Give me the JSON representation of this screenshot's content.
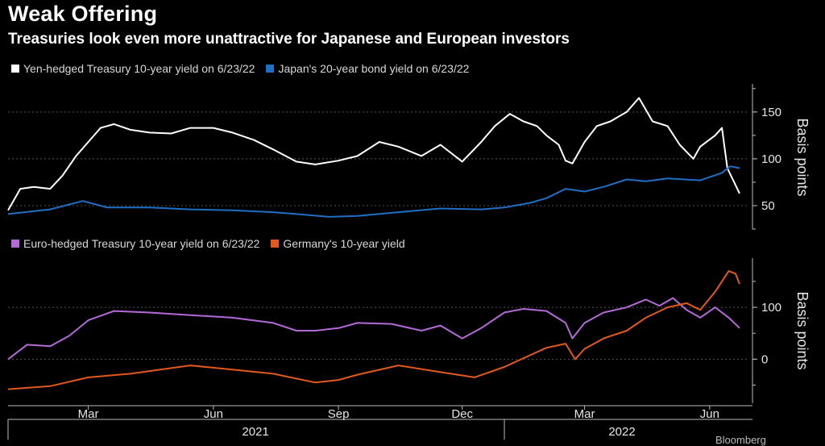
{
  "header": {
    "title": "Weak Offering",
    "subtitle": "Treasuries look even more unattractive for Japanese and European investors"
  },
  "footer": {
    "source_logo": "Bloomberg"
  },
  "colors": {
    "white": "#ffffff",
    "blue": "#1f6fc4",
    "purple": "#b36ad6",
    "orange": "#e2591c",
    "grid": "#555555",
    "axis": "#bbbbbb"
  },
  "chart_data": [
    {
      "type": "line",
      "legend": [
        "Yen-hedged Treasury 10-year yield on 6/23/22",
        "Japan's 20-year bond yield on 6/23/22"
      ],
      "ylabel": "Basis points",
      "yticks": [
        50,
        100,
        150
      ],
      "ylim": [
        25,
        180
      ],
      "x_date_range": [
        "2021-01-01",
        "2022-06-23"
      ],
      "grid": "horizontal dotted",
      "series": [
        {
          "name": "Yen-hedged Treasury 10-year yield on 6/23/22",
          "color": "#ffffff",
          "points": [
            [
              "2021-01-01",
              45
            ],
            [
              "2021-01-10",
              68
            ],
            [
              "2021-01-20",
              70
            ],
            [
              "2021-02-01",
              68
            ],
            [
              "2021-02-10",
              82
            ],
            [
              "2021-02-20",
              103
            ],
            [
              "2021-03-01",
              118
            ],
            [
              "2021-03-10",
              133
            ],
            [
              "2021-03-20",
              137
            ],
            [
              "2021-04-01",
              131
            ],
            [
              "2021-04-15",
              128
            ],
            [
              "2021-05-01",
              127
            ],
            [
              "2021-05-15",
              133
            ],
            [
              "2021-06-01",
              133
            ],
            [
              "2021-06-15",
              128
            ],
            [
              "2021-07-01",
              120
            ],
            [
              "2021-07-15",
              110
            ],
            [
              "2021-08-01",
              97
            ],
            [
              "2021-08-15",
              94
            ],
            [
              "2021-09-01",
              98
            ],
            [
              "2021-09-15",
              103
            ],
            [
              "2021-10-01",
              118
            ],
            [
              "2021-10-15",
              113
            ],
            [
              "2021-11-01",
              103
            ],
            [
              "2021-11-15",
              115
            ],
            [
              "2021-12-01",
              97
            ],
            [
              "2021-12-15",
              118
            ],
            [
              "2021-12-25",
              135
            ],
            [
              "2022-01-05",
              148
            ],
            [
              "2022-01-15",
              140
            ],
            [
              "2022-01-25",
              135
            ],
            [
              "2022-02-01",
              125
            ],
            [
              "2022-02-10",
              115
            ],
            [
              "2022-02-15",
              98
            ],
            [
              "2022-02-20",
              95
            ],
            [
              "2022-03-01",
              118
            ],
            [
              "2022-03-10",
              135
            ],
            [
              "2022-03-20",
              140
            ],
            [
              "2022-04-01",
              150
            ],
            [
              "2022-04-10",
              165
            ],
            [
              "2022-04-20",
              140
            ],
            [
              "2022-05-01",
              135
            ],
            [
              "2022-05-10",
              115
            ],
            [
              "2022-05-20",
              100
            ],
            [
              "2022-05-25",
              113
            ],
            [
              "2022-06-05",
              125
            ],
            [
              "2022-06-10",
              133
            ],
            [
              "2022-06-14",
              90
            ],
            [
              "2022-06-23",
              63
            ]
          ]
        },
        {
          "name": "Japan's 20-year bond yield on 6/23/22",
          "color": "#1f6fc4",
          "points": [
            [
              "2021-01-01",
              41
            ],
            [
              "2021-02-01",
              46
            ],
            [
              "2021-02-25",
              55
            ],
            [
              "2021-03-15",
              48
            ],
            [
              "2021-04-15",
              48
            ],
            [
              "2021-05-15",
              46
            ],
            [
              "2021-06-15",
              45
            ],
            [
              "2021-07-15",
              43
            ],
            [
              "2021-08-01",
              41
            ],
            [
              "2021-08-25",
              38
            ],
            [
              "2021-09-15",
              39
            ],
            [
              "2021-10-15",
              43
            ],
            [
              "2021-11-15",
              47
            ],
            [
              "2021-12-15",
              46
            ],
            [
              "2022-01-01",
              48
            ],
            [
              "2022-01-20",
              53
            ],
            [
              "2022-02-01",
              58
            ],
            [
              "2022-02-15",
              68
            ],
            [
              "2022-03-01",
              65
            ],
            [
              "2022-03-15",
              70
            ],
            [
              "2022-04-01",
              78
            ],
            [
              "2022-04-15",
              76
            ],
            [
              "2022-05-01",
              79
            ],
            [
              "2022-05-25",
              77
            ],
            [
              "2022-06-10",
              85
            ],
            [
              "2022-06-16",
              92
            ],
            [
              "2022-06-23",
              90
            ]
          ]
        }
      ]
    },
    {
      "type": "line",
      "legend": [
        "Euro-hedged Treasury 10-year yield on 6/23/22",
        "Germany's 10-year yield"
      ],
      "ylabel": "Basis points",
      "yticks": [
        0,
        100
      ],
      "ylim": [
        -85,
        195
      ],
      "x_date_range": [
        "2021-01-01",
        "2022-06-23"
      ],
      "grid": "horizontal dotted",
      "series": [
        {
          "name": "Euro-hedged Treasury 10-year yield on 6/23/22",
          "color": "#b36ad6",
          "points": [
            [
              "2021-01-01",
              0
            ],
            [
              "2021-01-15",
              28
            ],
            [
              "2021-02-01",
              25
            ],
            [
              "2021-02-15",
              45
            ],
            [
              "2021-03-01",
              75
            ],
            [
              "2021-03-20",
              93
            ],
            [
              "2021-04-15",
              90
            ],
            [
              "2021-05-15",
              85
            ],
            [
              "2021-06-15",
              80
            ],
            [
              "2021-07-15",
              70
            ],
            [
              "2021-08-01",
              55
            ],
            [
              "2021-08-15",
              55
            ],
            [
              "2021-09-01",
              60
            ],
            [
              "2021-09-15",
              70
            ],
            [
              "2021-10-10",
              68
            ],
            [
              "2021-11-01",
              55
            ],
            [
              "2021-11-15",
              65
            ],
            [
              "2021-12-01",
              40
            ],
            [
              "2021-12-15",
              60
            ],
            [
              "2022-01-01",
              90
            ],
            [
              "2022-01-15",
              97
            ],
            [
              "2022-02-01",
              93
            ],
            [
              "2022-02-15",
              70
            ],
            [
              "2022-02-20",
              40
            ],
            [
              "2022-03-01",
              70
            ],
            [
              "2022-03-15",
              90
            ],
            [
              "2022-04-01",
              100
            ],
            [
              "2022-04-15",
              115
            ],
            [
              "2022-04-25",
              103
            ],
            [
              "2022-05-05",
              118
            ],
            [
              "2022-05-15",
              95
            ],
            [
              "2022-05-25",
              80
            ],
            [
              "2022-06-05",
              100
            ],
            [
              "2022-06-15",
              80
            ],
            [
              "2022-06-23",
              60
            ]
          ]
        },
        {
          "name": "Germany's 10-year yield",
          "color": "#e2591c",
          "points": [
            [
              "2021-01-01",
              -58
            ],
            [
              "2021-02-01",
              -52
            ],
            [
              "2021-03-01",
              -35
            ],
            [
              "2021-04-01",
              -28
            ],
            [
              "2021-05-15",
              -12
            ],
            [
              "2021-06-15",
              -20
            ],
            [
              "2021-07-15",
              -28
            ],
            [
              "2021-08-15",
              -45
            ],
            [
              "2021-09-01",
              -40
            ],
            [
              "2021-09-15",
              -30
            ],
            [
              "2021-10-15",
              -12
            ],
            [
              "2021-11-15",
              -25
            ],
            [
              "2021-12-10",
              -35
            ],
            [
              "2022-01-01",
              -15
            ],
            [
              "2022-01-15",
              2
            ],
            [
              "2022-02-01",
              22
            ],
            [
              "2022-02-15",
              30
            ],
            [
              "2022-02-22",
              0
            ],
            [
              "2022-03-01",
              20
            ],
            [
              "2022-03-15",
              40
            ],
            [
              "2022-04-01",
              55
            ],
            [
              "2022-04-15",
              80
            ],
            [
              "2022-05-01",
              100
            ],
            [
              "2022-05-15",
              108
            ],
            [
              "2022-05-25",
              95
            ],
            [
              "2022-06-05",
              130
            ],
            [
              "2022-06-15",
              170
            ],
            [
              "2022-06-20",
              165
            ],
            [
              "2022-06-23",
              145
            ]
          ]
        }
      ]
    }
  ],
  "x_axis": {
    "month_ticks": [
      {
        "label": "Mar",
        "date": "2021-03-01"
      },
      {
        "label": "Jun",
        "date": "2021-06-01"
      },
      {
        "label": "Sep",
        "date": "2021-09-01"
      },
      {
        "label": "Dec",
        "date": "2021-12-01"
      },
      {
        "label": "Mar",
        "date": "2022-03-01"
      },
      {
        "label": "Jun",
        "date": "2022-06-01"
      }
    ],
    "year_labels": [
      {
        "label": "2021",
        "from": "2021-01-01",
        "to": "2021-12-31"
      },
      {
        "label": "2022",
        "from": "2022-01-01",
        "to": "2022-06-23"
      }
    ]
  }
}
